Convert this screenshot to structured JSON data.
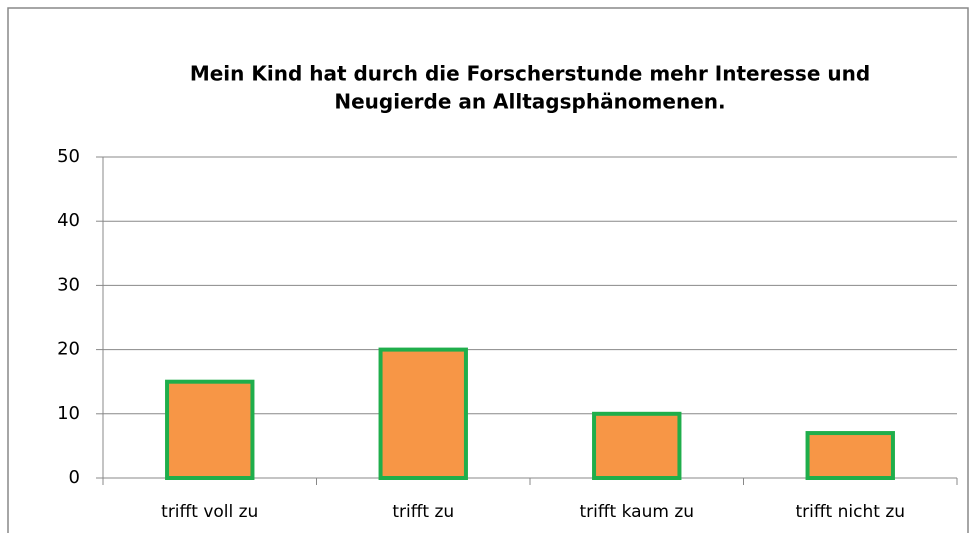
{
  "chart_data": {
    "type": "bar",
    "title": [
      "Mein Kind hat durch die Forscherstunde mehr Interesse und",
      "Neugierde an Alltagsphänomenen."
    ],
    "categories": [
      "trifft voll zu",
      "trifft zu",
      "trifft kaum zu",
      "trifft nicht zu"
    ],
    "values": [
      15,
      20,
      10,
      7
    ],
    "color": "#f79646",
    "edge_color": "#1fae4b",
    "ylim": [
      0,
      50
    ],
    "yticks": [
      0,
      10,
      20,
      30,
      40,
      50
    ],
    "grid": true
  }
}
